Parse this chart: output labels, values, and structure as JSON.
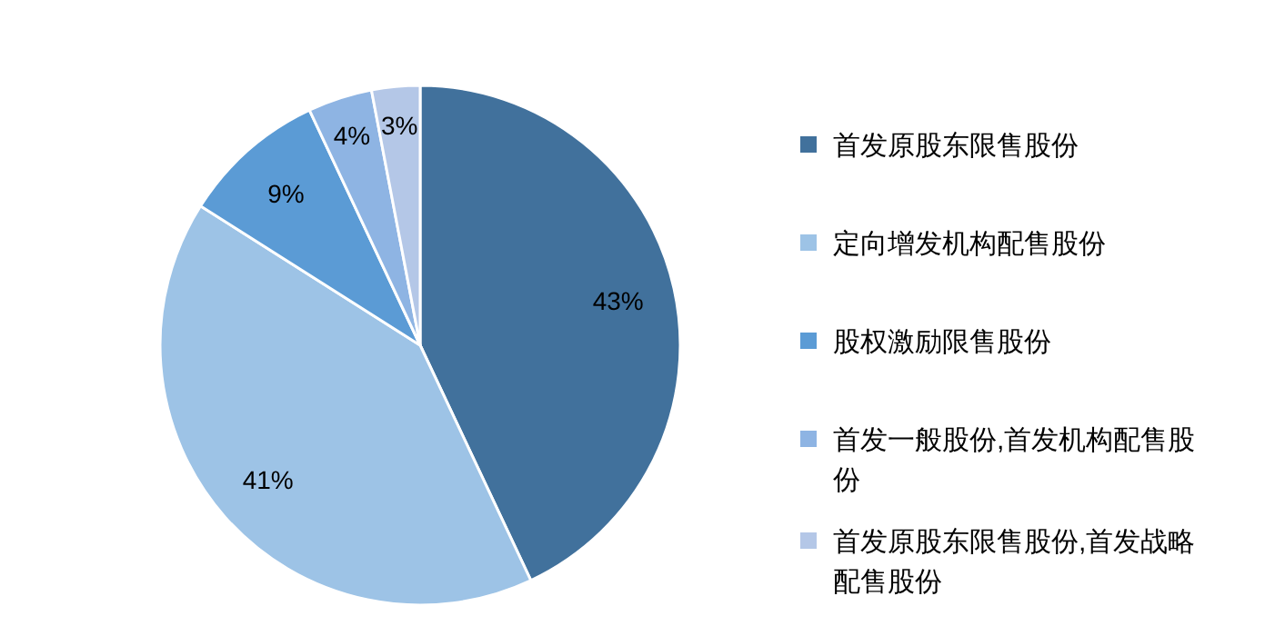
{
  "chart_data": {
    "type": "pie",
    "categories": [
      "首发原股东限售股份",
      "定向增发机构配售股份",
      "股权激励限售股份",
      "首发一般股份,首发机构配售股份",
      "首发原股东限售股份,首发战略配售股份"
    ],
    "values": [
      43,
      41,
      9,
      4,
      3
    ],
    "colors": [
      "#41719c",
      "#9dc3e6",
      "#5b9bd5",
      "#8eb4e3",
      "#b4c7e7"
    ],
    "value_labels": [
      "43%",
      "41%",
      "9%",
      "4%",
      "3%"
    ],
    "legend": "right"
  }
}
